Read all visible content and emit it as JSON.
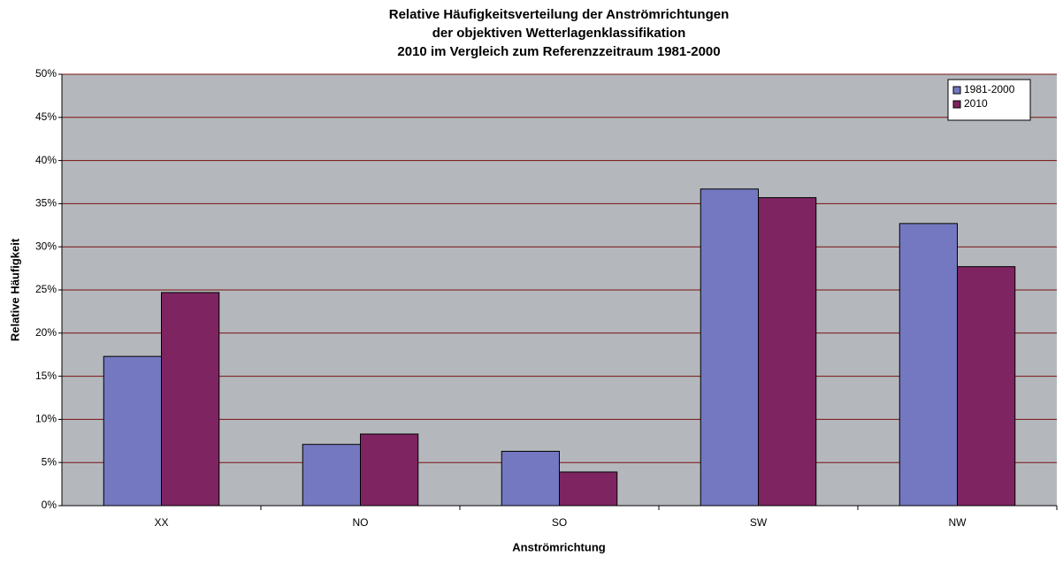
{
  "chart_data": {
    "type": "bar",
    "title": [
      "Relative Häufigkeitsverteilung der Anströmrichtungen",
      "der objektiven Wetterlagenklassifikation",
      "2010 im Vergleich zum Referenzzeitraum 1981-2000"
    ],
    "x_label": "Anströmrichtung",
    "y_label": "Relative Häufigkeit",
    "categories": [
      "XX",
      "NO",
      "SO",
      "SW",
      "NW"
    ],
    "series": [
      {
        "name": "1981-2000",
        "color": "#7378c0",
        "values": [
          17.3,
          7.1,
          6.3,
          36.7,
          32.7
        ]
      },
      {
        "name": "2010",
        "color": "#7e2460",
        "values": [
          24.7,
          8.3,
          3.9,
          35.7,
          27.7
        ]
      }
    ],
    "ylim": [
      0,
      50
    ],
    "yticks": [
      {
        "value": 0,
        "label": "0%"
      },
      {
        "value": 5,
        "label": "5%"
      },
      {
        "value": 10,
        "label": "10%"
      },
      {
        "value": 15,
        "label": "15%"
      },
      {
        "value": 20,
        "label": "20%"
      },
      {
        "value": 25,
        "label": "25%"
      },
      {
        "value": 30,
        "label": "30%"
      },
      {
        "value": 35,
        "label": "35%"
      },
      {
        "value": 40,
        "label": "40%"
      },
      {
        "value": 45,
        "label": "45%"
      },
      {
        "value": 50,
        "label": "50%"
      }
    ],
    "grid": true,
    "legend": "top-right"
  }
}
